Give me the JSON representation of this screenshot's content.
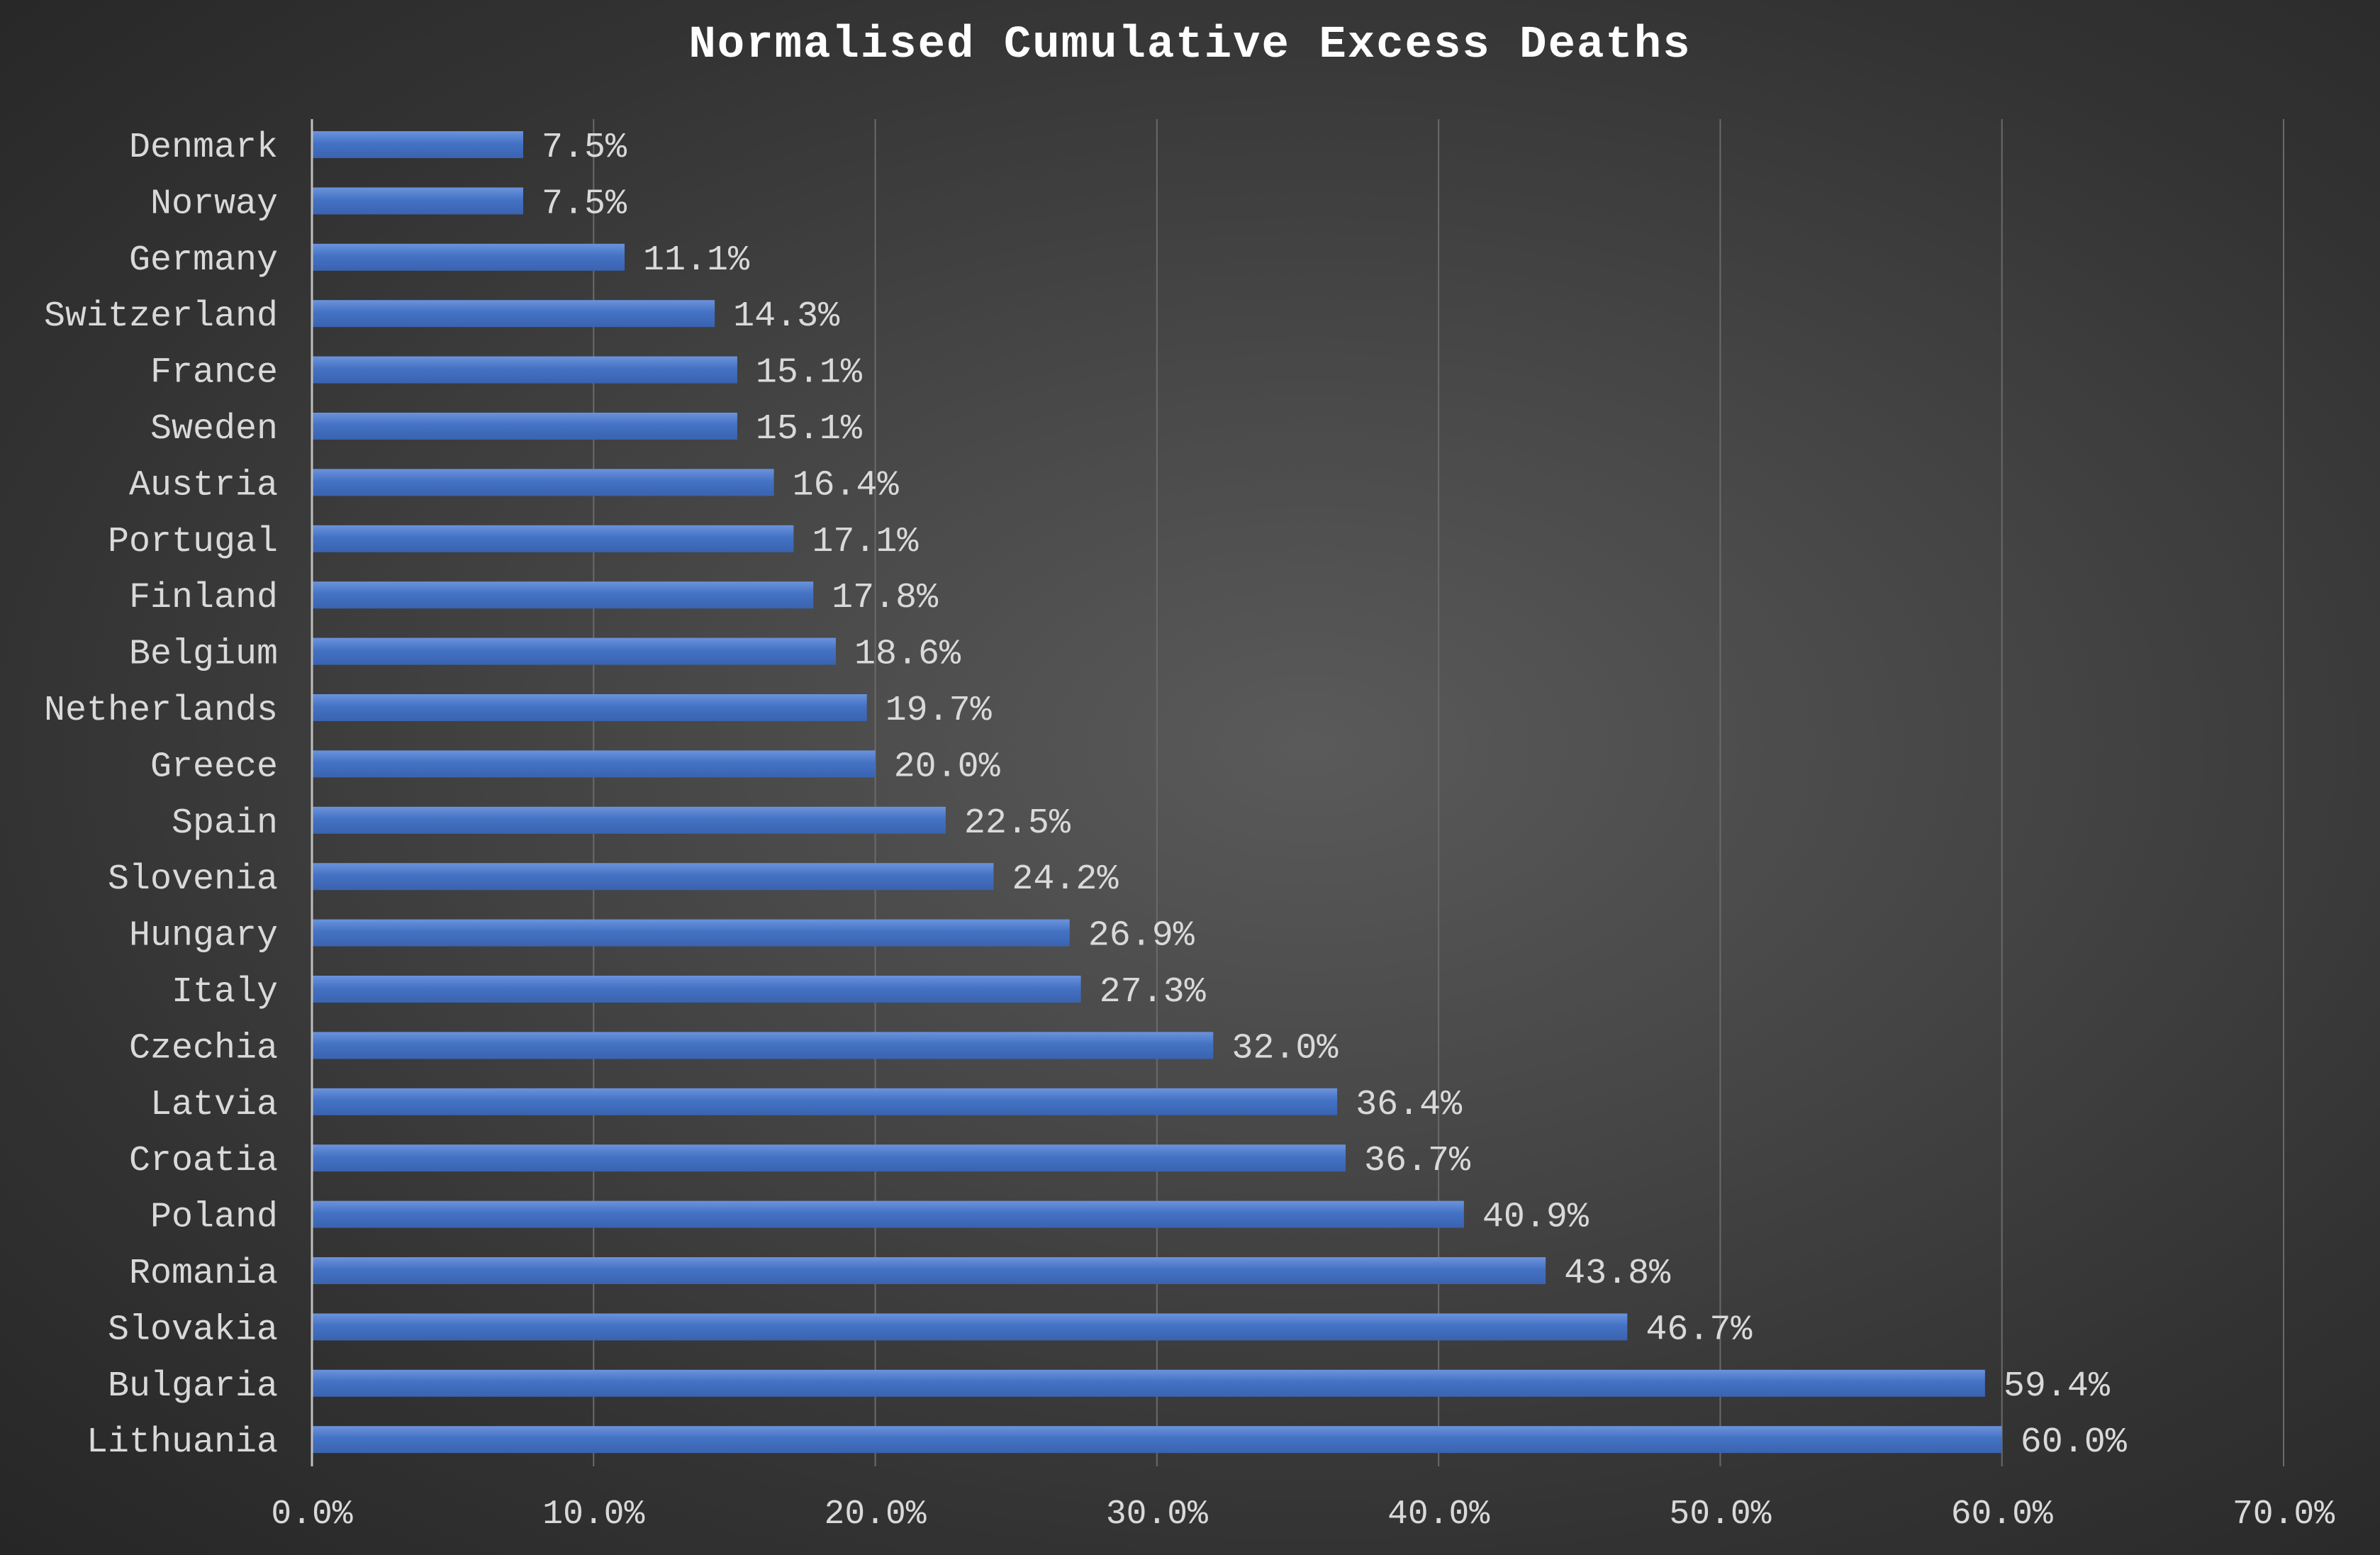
{
  "chart_data": {
    "type": "bar",
    "orientation": "horizontal",
    "title": "Normalised Cumulative Excess Deaths",
    "categories": [
      "Denmark",
      "Norway",
      "Germany",
      "Switzerland",
      "France",
      "Sweden",
      "Austria",
      "Portugal",
      "Finland",
      "Belgium",
      "Netherlands",
      "Greece",
      "Spain",
      "Slovenia",
      "Hungary",
      "Italy",
      "Czechia",
      "Latvia",
      "Croatia",
      "Poland",
      "Romania",
      "Slovakia",
      "Bulgaria",
      "Lithuania"
    ],
    "values": [
      7.5,
      7.5,
      11.1,
      14.3,
      15.1,
      15.1,
      16.4,
      17.1,
      17.8,
      18.6,
      19.7,
      20.0,
      22.5,
      24.2,
      26.9,
      27.3,
      32.0,
      36.4,
      36.7,
      40.9,
      43.8,
      46.7,
      59.4,
      60.0
    ],
    "value_labels": [
      "7.5%",
      "7.5%",
      "11.1%",
      "14.3%",
      "15.1%",
      "15.1%",
      "16.4%",
      "17.1%",
      "17.8%",
      "18.6%",
      "19.7%",
      "20.0%",
      "22.5%",
      "24.2%",
      "26.9%",
      "27.3%",
      "32.0%",
      "36.4%",
      "36.7%",
      "40.9%",
      "43.8%",
      "46.7%",
      "59.4%",
      "60.0%"
    ],
    "xlim": [
      0,
      70
    ],
    "xticks": [
      0,
      10,
      20,
      30,
      40,
      50,
      60,
      70
    ],
    "xtick_labels": [
      "0.0%",
      "10.0%",
      "20.0%",
      "30.0%",
      "40.0%",
      "50.0%",
      "60.0%",
      "70.0%"
    ],
    "xlabel": "",
    "ylabel": "",
    "grid": "vertical",
    "legend": "none",
    "bar_color": "#4472c4",
    "bar_highlight": "#6b93dc",
    "gridline_color": "#6a6a6a",
    "axis_color": "#bfbfbf",
    "text_color": "#d9d9d9",
    "title_color": "#ffffff"
  }
}
